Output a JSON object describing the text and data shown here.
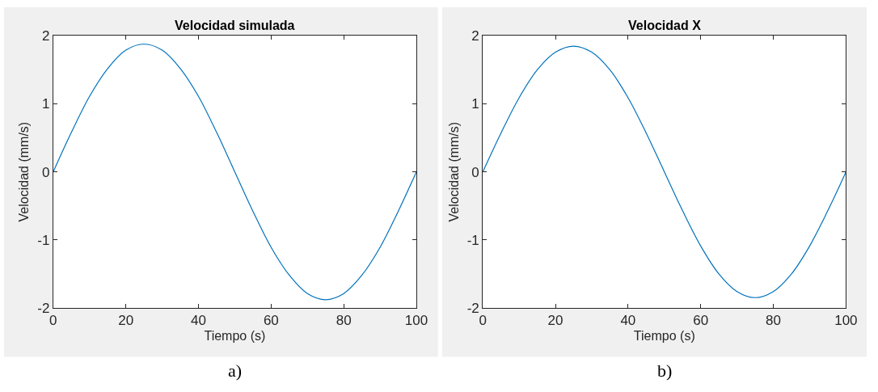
{
  "chart_data": [
    {
      "type": "line",
      "title": "Velocidad simulada",
      "xlabel": "Tiempo (s)",
      "ylabel": "Velocidad (mm/s)",
      "annotations": [
        "a)"
      ],
      "x": [
        0,
        5,
        10,
        15,
        20,
        25,
        30,
        35,
        40,
        45,
        50,
        55,
        60,
        65,
        70,
        75,
        80,
        85,
        90,
        95,
        100
      ],
      "series": [
        {
          "color": "#0072bd",
          "values": [
            0,
            0.58,
            1.11,
            1.52,
            1.79,
            1.88,
            1.79,
            1.52,
            1.11,
            0.58,
            0,
            -0.58,
            -1.11,
            -1.52,
            -1.79,
            -1.88,
            -1.79,
            -1.52,
            -1.11,
            -0.58,
            0
          ]
        }
      ],
      "xlim": [
        0,
        100
      ],
      "xticks": [
        0,
        20,
        40,
        60,
        80,
        100
      ],
      "ylim": [
        -2,
        2
      ],
      "yticks": [
        -2,
        -1,
        0,
        1,
        2
      ],
      "grid": false
    },
    {
      "type": "line",
      "title": "Velocidad X",
      "xlabel": "Tiempo (s)",
      "ylabel": "Velocidad (mm/s)",
      "annotations": [
        "b)"
      ],
      "x": [
        0,
        5,
        10,
        15,
        20,
        25,
        30,
        35,
        40,
        45,
        50,
        55,
        60,
        65,
        70,
        75,
        80,
        85,
        90,
        95,
        100
      ],
      "series": [
        {
          "color": "#0072bd",
          "values": [
            0,
            0.57,
            1.09,
            1.5,
            1.76,
            1.85,
            1.76,
            1.5,
            1.09,
            0.57,
            0,
            -0.57,
            -1.09,
            -1.5,
            -1.76,
            -1.85,
            -1.76,
            -1.5,
            -1.09,
            -0.57,
            0
          ]
        }
      ],
      "xlim": [
        0,
        100
      ],
      "xticks": [
        0,
        20,
        40,
        60,
        80,
        100
      ],
      "ylim": [
        -2,
        2
      ],
      "yticks": [
        -2,
        -1,
        0,
        1,
        2
      ],
      "grid": false
    }
  ]
}
